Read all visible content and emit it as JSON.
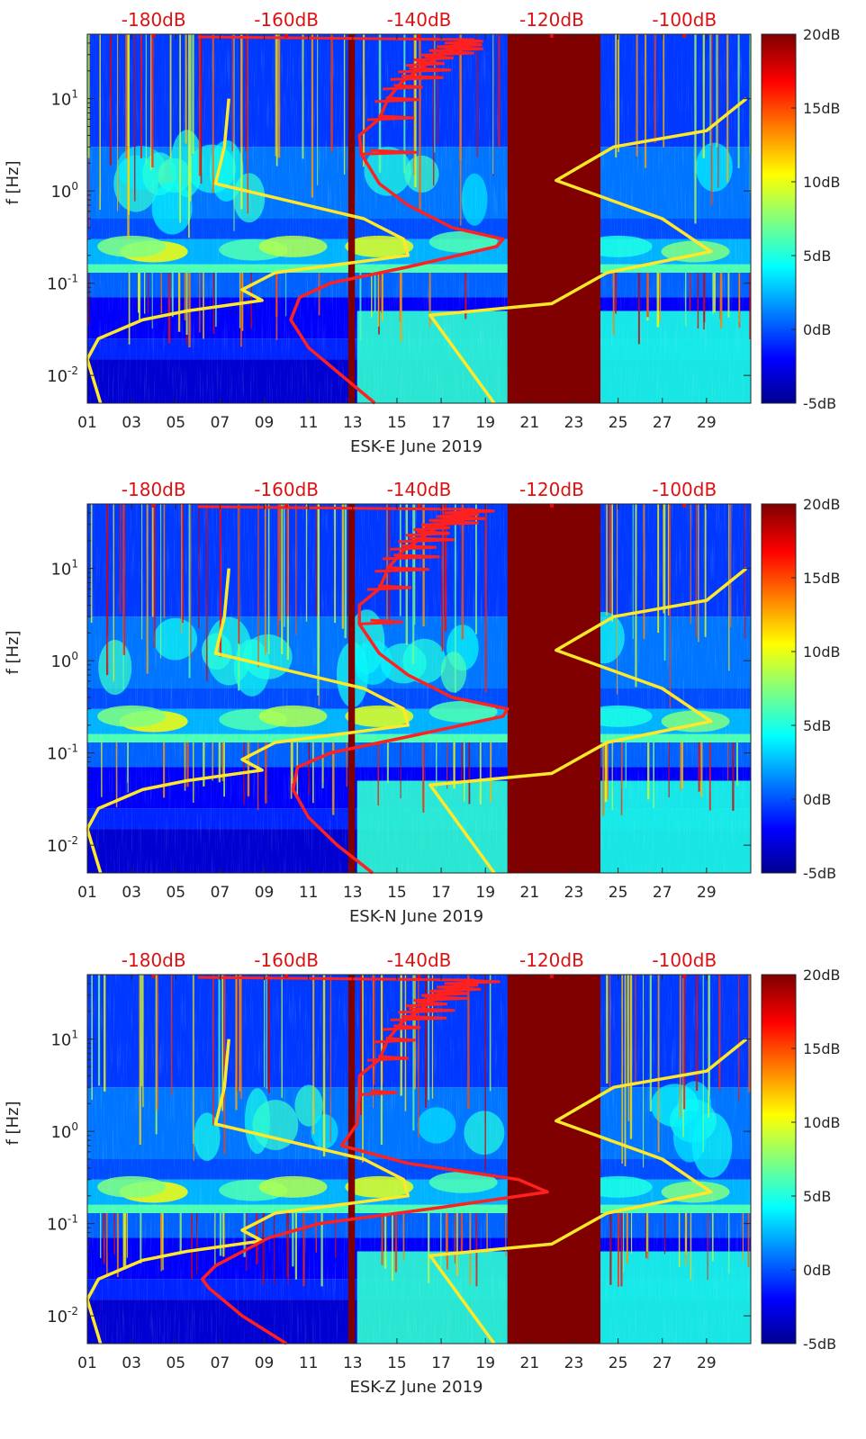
{
  "figure": {
    "xticks": [
      "01",
      "03",
      "05",
      "07",
      "09",
      "11",
      "13",
      "15",
      "17",
      "19",
      "21",
      "23",
      "25",
      "27",
      "29"
    ],
    "ylabel": "f [Hz]",
    "yticks": [
      {
        "label": "10^-2",
        "exp": -2
      },
      {
        "label": "10^-1",
        "exp": -1
      },
      {
        "label": "10^0",
        "exp": 0
      },
      {
        "label": "10^1",
        "exp": 1
      }
    ],
    "toplabels": [
      "-180dB",
      "-160dB",
      "-140dB",
      "-120dB",
      "-100dB"
    ],
    "colorbar": {
      "labels": [
        "20dB",
        "15dB",
        "10dB",
        "5dB",
        "0dB",
        "-5dB"
      ],
      "range": [
        -5,
        20
      ]
    },
    "colors": {
      "noise_curve": "#ff2020",
      "model_curve": "#ffe82a",
      "label_red": "#dd1111",
      "gap_fill": "#800000"
    }
  },
  "chart_data": [
    {
      "type": "heatmap",
      "title": "ESK-E June 2019",
      "xlabel": "ESK-E June 2019",
      "ylabel": "f [Hz]",
      "xlim": [
        1,
        31
      ],
      "ylim": [
        0.005,
        50
      ],
      "yscale": "log",
      "color_range_db": [
        -5,
        20
      ],
      "data_gaps_days": [
        [
          12.8,
          13.1
        ],
        [
          20.0,
          24.2
        ]
      ],
      "red_curve": {
        "top_axis_db": [
          -180,
          -160,
          -140,
          -120,
          -100
        ],
        "points": [
          [
            0.005,
            14.0
          ],
          [
            0.01,
            12.5
          ],
          [
            0.02,
            11.0
          ],
          [
            0.04,
            10.2
          ],
          [
            0.07,
            10.6
          ],
          [
            0.1,
            12.0
          ],
          [
            0.15,
            15.5
          ],
          [
            0.25,
            19.5
          ],
          [
            0.3,
            19.8
          ],
          [
            0.4,
            17.5
          ],
          [
            0.7,
            15.5
          ],
          [
            1.2,
            14.2
          ],
          [
            2.5,
            13.4
          ],
          [
            4,
            13.3
          ],
          [
            6,
            14.2
          ],
          [
            10,
            14.6
          ],
          [
            15,
            15.2
          ],
          [
            25,
            16.5
          ],
          [
            40,
            17.8
          ]
        ]
      },
      "yellow_curve_left": {
        "points": [
          [
            0.005,
            1.6
          ],
          [
            0.015,
            1.0
          ],
          [
            0.025,
            1.5
          ],
          [
            0.04,
            3.5
          ],
          [
            0.05,
            5.5
          ],
          [
            0.065,
            8.9
          ],
          [
            0.085,
            8.0
          ],
          [
            0.13,
            9.5
          ],
          [
            0.2,
            15.5
          ],
          [
            0.3,
            15.3
          ],
          [
            0.5,
            13.5
          ],
          [
            1.2,
            6.8
          ],
          [
            3,
            7.2
          ],
          [
            10,
            7.4
          ]
        ]
      },
      "yellow_curve_right": {
        "points": [
          [
            0.005,
            19.4
          ],
          [
            0.045,
            16.5
          ],
          [
            0.06,
            22.0
          ],
          [
            0.13,
            24.5
          ],
          [
            0.22,
            29.2
          ],
          [
            0.5,
            27.0
          ],
          [
            1.3,
            22.2
          ],
          [
            3,
            24.8
          ],
          [
            4.5,
            29.0
          ],
          [
            10,
            30.8
          ]
        ]
      }
    },
    {
      "type": "heatmap",
      "title": "ESK-N June 2019",
      "xlabel": "ESK-N June 2019",
      "ylabel": "f [Hz]",
      "xlim": [
        1,
        31
      ],
      "ylim": [
        0.005,
        50
      ],
      "yscale": "log",
      "color_range_db": [
        -5,
        20
      ],
      "data_gaps_days": [
        [
          12.8,
          13.1
        ],
        [
          20.0,
          24.2
        ]
      ],
      "red_curve": {
        "top_axis_db": [
          -180,
          -160,
          -140,
          -120,
          -100
        ],
        "points": [
          [
            0.005,
            13.9
          ],
          [
            0.01,
            12.3
          ],
          [
            0.02,
            11.0
          ],
          [
            0.04,
            10.3
          ],
          [
            0.07,
            10.5
          ],
          [
            0.1,
            12.0
          ],
          [
            0.15,
            15.5
          ],
          [
            0.25,
            19.8
          ],
          [
            0.3,
            20.0
          ],
          [
            0.4,
            17.5
          ],
          [
            0.7,
            15.5
          ],
          [
            1.2,
            14.2
          ],
          [
            2.5,
            13.3
          ],
          [
            4,
            13.3
          ],
          [
            6,
            14.2
          ],
          [
            10,
            14.6
          ],
          [
            15,
            15.2
          ],
          [
            25,
            16.5
          ],
          [
            40,
            17.8
          ]
        ]
      },
      "yellow_curve_left": {
        "points": [
          [
            0.005,
            1.6
          ],
          [
            0.015,
            1.0
          ],
          [
            0.025,
            1.5
          ],
          [
            0.04,
            3.5
          ],
          [
            0.05,
            5.5
          ],
          [
            0.065,
            8.9
          ],
          [
            0.085,
            8.0
          ],
          [
            0.13,
            9.5
          ],
          [
            0.2,
            15.5
          ],
          [
            0.3,
            15.3
          ],
          [
            0.5,
            13.5
          ],
          [
            1.2,
            6.8
          ],
          [
            3,
            7.2
          ],
          [
            10,
            7.4
          ]
        ]
      },
      "yellow_curve_right": {
        "points": [
          [
            0.005,
            19.4
          ],
          [
            0.045,
            16.5
          ],
          [
            0.06,
            22.0
          ],
          [
            0.13,
            24.5
          ],
          [
            0.22,
            29.2
          ],
          [
            0.5,
            27.0
          ],
          [
            1.3,
            22.2
          ],
          [
            3,
            24.8
          ],
          [
            4.5,
            29.0
          ],
          [
            10,
            30.8
          ]
        ]
      }
    },
    {
      "type": "heatmap",
      "title": "ESK-Z June 2019",
      "xlabel": "ESK-Z June 2019",
      "ylabel": "f [Hz]",
      "xlim": [
        1,
        31
      ],
      "ylim": [
        0.005,
        50
      ],
      "yscale": "log",
      "color_range_db": [
        -5,
        20
      ],
      "data_gaps_days": [
        [
          12.8,
          13.1
        ],
        [
          20.0,
          24.2
        ]
      ],
      "red_curve": {
        "top_axis_db": [
          -180,
          -160,
          -140,
          -120,
          -100
        ],
        "points": [
          [
            0.005,
            10.0
          ],
          [
            0.01,
            8.0
          ],
          [
            0.02,
            6.5
          ],
          [
            0.025,
            6.2
          ],
          [
            0.035,
            6.8
          ],
          [
            0.07,
            9.2
          ],
          [
            0.1,
            11.5
          ],
          [
            0.15,
            17.0
          ],
          [
            0.22,
            21.8
          ],
          [
            0.3,
            20.5
          ],
          [
            0.45,
            15.5
          ],
          [
            0.7,
            12.5
          ],
          [
            1.2,
            13.2
          ],
          [
            2.5,
            13.3
          ],
          [
            4,
            13.3
          ],
          [
            6,
            14.2
          ],
          [
            10,
            14.6
          ],
          [
            15,
            15.2
          ],
          [
            25,
            16.5
          ],
          [
            40,
            17.8
          ]
        ]
      },
      "yellow_curve_left": {
        "points": [
          [
            0.005,
            1.6
          ],
          [
            0.015,
            1.0
          ],
          [
            0.025,
            1.5
          ],
          [
            0.04,
            3.5
          ],
          [
            0.05,
            5.5
          ],
          [
            0.065,
            8.9
          ],
          [
            0.085,
            8.0
          ],
          [
            0.13,
            9.5
          ],
          [
            0.2,
            15.5
          ],
          [
            0.3,
            15.3
          ],
          [
            0.5,
            13.5
          ],
          [
            1.2,
            6.8
          ],
          [
            3,
            7.2
          ],
          [
            10,
            7.4
          ]
        ]
      },
      "yellow_curve_right": {
        "points": [
          [
            0.005,
            19.4
          ],
          [
            0.045,
            16.5
          ],
          [
            0.06,
            22.0
          ],
          [
            0.13,
            24.5
          ],
          [
            0.22,
            29.2
          ],
          [
            0.5,
            27.0
          ],
          [
            1.3,
            22.2
          ],
          [
            3,
            24.8
          ],
          [
            4.5,
            29.0
          ],
          [
            10,
            30.8
          ]
        ]
      }
    }
  ]
}
